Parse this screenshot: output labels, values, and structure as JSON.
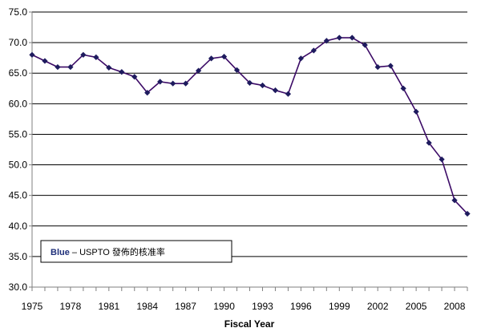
{
  "chart_data": {
    "type": "line",
    "title": "",
    "xlabel": "Fiscal Year",
    "ylabel": "",
    "x": [
      1975,
      1976,
      1977,
      1978,
      1979,
      1980,
      1981,
      1982,
      1983,
      1984,
      1985,
      1986,
      1987,
      1988,
      1989,
      1990,
      1991,
      1992,
      1993,
      1994,
      1995,
      1996,
      1997,
      1998,
      1999,
      2000,
      2001,
      2002,
      2003,
      2004,
      2005,
      2006,
      2007,
      2008,
      2009
    ],
    "series": [
      {
        "values": [
          68.0,
          67.0,
          66.0,
          66.0,
          68.0,
          67.6,
          65.9,
          65.2,
          64.4,
          61.8,
          63.6,
          63.3,
          63.3,
          65.4,
          67.4,
          67.7,
          65.5,
          63.4,
          63.0,
          62.2,
          61.6,
          67.4,
          68.7,
          70.3,
          70.8,
          70.8,
          69.6,
          66.0,
          66.2,
          62.5,
          58.7,
          53.6,
          50.9,
          44.2,
          42.0
        ],
        "color": "#3b0a66"
      }
    ],
    "xlim": [
      1975,
      2009
    ],
    "ylim": [
      30,
      75
    ],
    "ytick_step": 5,
    "grid": true,
    "x_tick_labels": [
      "1975",
      "1978",
      "1981",
      "1984",
      "1987",
      "1990",
      "1993",
      "1996",
      "1999",
      "2002",
      "2005",
      "2008"
    ],
    "y_tick_labels": [
      "30.0",
      "35.0",
      "40.0",
      "45.0",
      "50.0",
      "55.0",
      "60.0",
      "65.0",
      "70.0",
      "75.0"
    ],
    "legend": {
      "strong": "Blue",
      "text": " – USPTO  發佈的核准率"
    }
  },
  "colors": {
    "line": "#3b0a66",
    "marker": "#1e1b5e",
    "grid": "#000000",
    "axis": "#7f7f7f",
    "legend_strong": "#1f2f7a"
  }
}
